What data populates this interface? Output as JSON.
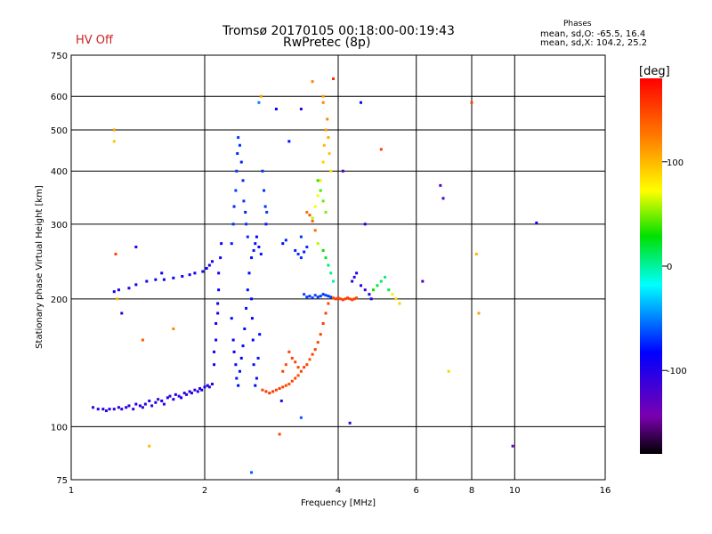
{
  "header": {
    "title_line1": "Tromsø 20170105 00:18:00-00:19:43",
    "title_line2": "RwPretec (8p)",
    "status": "HV Off",
    "stats_title": "Phases",
    "stats_line1": "mean, sd,O: -65.5, 16.4",
    "stats_line2": "mean, sd,X: 104.2, 25.2"
  },
  "colors": {
    "status": "#cc2222",
    "grid": "#000000"
  },
  "chart_data": {
    "type": "scatter",
    "xlabel": "Frequency [MHz]",
    "ylabel": "Stationary phase Virtual Height [km]",
    "xscale": "log",
    "yscale": "log",
    "xlim": [
      1,
      16
    ],
    "ylim": [
      75,
      750
    ],
    "xticks": [
      1,
      2,
      4,
      6,
      8,
      10,
      16
    ],
    "yticks": [
      75,
      100,
      200,
      300,
      400,
      500,
      600,
      750
    ],
    "grid": true,
    "colorbar": {
      "label": "[deg]",
      "range": [
        -180,
        180
      ],
      "ticks": [
        100,
        0,
        -100
      ],
      "colormap": "rainbow (black→purple→blue→cyan→green→yellow→orange→red)"
    },
    "points_format": "[frequency_MHz, height_km, phase_deg]",
    "points": [
      [
        1.12,
        111,
        -110
      ],
      [
        1.15,
        110,
        -105
      ],
      [
        1.18,
        110,
        -100
      ],
      [
        1.2,
        109,
        -112
      ],
      [
        1.22,
        110,
        -95
      ],
      [
        1.25,
        110,
        -108
      ],
      [
        1.28,
        111,
        -100
      ],
      [
        1.3,
        110,
        -115
      ],
      [
        1.33,
        111,
        -98
      ],
      [
        1.35,
        112,
        -105
      ],
      [
        1.38,
        110,
        -110
      ],
      [
        1.4,
        113,
        -100
      ],
      [
        1.43,
        112,
        -90
      ],
      [
        1.45,
        111,
        -115
      ],
      [
        1.47,
        113,
        -102
      ],
      [
        1.5,
        115,
        -95
      ],
      [
        1.52,
        112,
        -108
      ],
      [
        1.55,
        114,
        -100
      ],
      [
        1.57,
        116,
        -112
      ],
      [
        1.6,
        115,
        -92
      ],
      [
        1.62,
        113,
        -105
      ],
      [
        1.65,
        117,
        -98
      ],
      [
        1.67,
        118,
        -115
      ],
      [
        1.7,
        116,
        -100
      ],
      [
        1.72,
        119,
        -95
      ],
      [
        1.75,
        118,
        -110
      ],
      [
        1.77,
        117,
        -90
      ],
      [
        1.8,
        120,
        -102
      ],
      [
        1.82,
        119,
        -108
      ],
      [
        1.85,
        121,
        -95
      ],
      [
        1.87,
        120,
        -100
      ],
      [
        1.9,
        122,
        -112
      ],
      [
        1.93,
        121,
        -95
      ],
      [
        1.95,
        123,
        -105
      ],
      [
        1.97,
        122,
        -92
      ],
      [
        2.0,
        124,
        -100
      ],
      [
        2.03,
        125,
        -90
      ],
      [
        2.05,
        124,
        -108
      ],
      [
        2.08,
        126,
        -95
      ],
      [
        2.1,
        140,
        -95
      ],
      [
        2.1,
        150,
        -90
      ],
      [
        2.12,
        160,
        -95
      ],
      [
        2.12,
        175,
        -92
      ],
      [
        2.14,
        185,
        -98
      ],
      [
        2.14,
        195,
        -90
      ],
      [
        2.15,
        210,
        -88
      ],
      [
        2.15,
        230,
        -92
      ],
      [
        2.17,
        250,
        -95
      ],
      [
        2.18,
        270,
        -90
      ],
      [
        2.08,
        245,
        -92
      ],
      [
        2.05,
        240,
        -95
      ],
      [
        2.02,
        236,
        -90
      ],
      [
        1.98,
        232,
        -92
      ],
      [
        1.9,
        230,
        -90
      ],
      [
        1.85,
        228,
        -95
      ],
      [
        1.78,
        226,
        -92
      ],
      [
        1.7,
        224,
        -88
      ],
      [
        1.62,
        222,
        -90
      ],
      [
        1.55,
        222,
        -95
      ],
      [
        1.48,
        220,
        -92
      ],
      [
        1.4,
        216,
        -90
      ],
      [
        1.35,
        212,
        -95
      ],
      [
        1.28,
        210,
        -92
      ],
      [
        1.25,
        208,
        -90
      ],
      [
        2.3,
        270,
        -75
      ],
      [
        2.32,
        300,
        -70
      ],
      [
        2.33,
        330,
        -72
      ],
      [
        2.35,
        360,
        -68
      ],
      [
        2.36,
        400,
        -70
      ],
      [
        2.37,
        440,
        -72
      ],
      [
        2.38,
        480,
        -68
      ],
      [
        2.4,
        460,
        -70
      ],
      [
        2.42,
        420,
        -75
      ],
      [
        2.44,
        380,
        -72
      ],
      [
        2.45,
        340,
        -70
      ],
      [
        2.47,
        320,
        -75
      ],
      [
        2.48,
        300,
        -70
      ],
      [
        2.5,
        280,
        -72
      ],
      [
        2.3,
        180,
        -80
      ],
      [
        2.32,
        160,
        -85
      ],
      [
        2.33,
        150,
        -82
      ],
      [
        2.35,
        140,
        -80
      ],
      [
        2.36,
        130,
        -78
      ],
      [
        2.38,
        125,
        -82
      ],
      [
        2.4,
        135,
        -80
      ],
      [
        2.42,
        145,
        -85
      ],
      [
        2.44,
        155,
        -82
      ],
      [
        2.46,
        170,
        -80
      ],
      [
        2.48,
        190,
        -78
      ],
      [
        2.5,
        210,
        -80
      ],
      [
        2.52,
        230,
        -82
      ],
      [
        2.55,
        250,
        -80
      ],
      [
        2.58,
        260,
        -78
      ],
      [
        2.6,
        270,
        -80
      ],
      [
        2.62,
        280,
        -82
      ],
      [
        2.65,
        265,
        -80
      ],
      [
        2.68,
        255,
        -78
      ],
      [
        2.55,
        200,
        -82
      ],
      [
        2.56,
        180,
        -85
      ],
      [
        2.57,
        160,
        -82
      ],
      [
        2.58,
        140,
        -80
      ],
      [
        2.6,
        125,
        -82
      ],
      [
        2.62,
        130,
        -80
      ],
      [
        2.64,
        145,
        -78
      ],
      [
        2.66,
        165,
        -82
      ],
      [
        2.7,
        400,
        -70
      ],
      [
        2.72,
        360,
        -72
      ],
      [
        2.74,
        330,
        -70
      ],
      [
        2.75,
        300,
        -75
      ],
      [
        2.76,
        320,
        -68
      ],
      [
        2.65,
        580,
        -50
      ],
      [
        2.68,
        600,
        110
      ],
      [
        2.7,
        122,
        150
      ],
      [
        2.75,
        121,
        155
      ],
      [
        2.8,
        120,
        160
      ],
      [
        2.85,
        121,
        158
      ],
      [
        2.9,
        122,
        152
      ],
      [
        2.95,
        123,
        155
      ],
      [
        3.0,
        124,
        150
      ],
      [
        3.05,
        125,
        148
      ],
      [
        3.1,
        126,
        145
      ],
      [
        3.15,
        128,
        150
      ],
      [
        3.2,
        130,
        148
      ],
      [
        3.25,
        132,
        145
      ],
      [
        3.3,
        135,
        150
      ],
      [
        3.35,
        138,
        152
      ],
      [
        3.4,
        140,
        148
      ],
      [
        3.45,
        144,
        145
      ],
      [
        3.5,
        148,
        150
      ],
      [
        3.55,
        152,
        152
      ],
      [
        3.6,
        158,
        148
      ],
      [
        3.65,
        165,
        150
      ],
      [
        3.7,
        175,
        155
      ],
      [
        3.75,
        185,
        152
      ],
      [
        3.8,
        195,
        150
      ],
      [
        3.1,
        150,
        150
      ],
      [
        3.15,
        145,
        152
      ],
      [
        3.2,
        142,
        150
      ],
      [
        3.25,
        138,
        148
      ],
      [
        3.0,
        135,
        150
      ],
      [
        3.05,
        140,
        148
      ],
      [
        3.2,
        260,
        -75
      ],
      [
        3.25,
        255,
        -70
      ],
      [
        3.3,
        250,
        -72
      ],
      [
        3.35,
        258,
        -75
      ],
      [
        3.3,
        280,
        -70
      ],
      [
        3.4,
        265,
        -72
      ],
      [
        3.0,
        270,
        -78
      ],
      [
        3.05,
        275,
        -75
      ],
      [
        3.35,
        205,
        -65
      ],
      [
        3.4,
        202,
        -70
      ],
      [
        3.45,
        203,
        -68
      ],
      [
        3.5,
        201,
        -72
      ],
      [
        3.55,
        204,
        -65
      ],
      [
        3.6,
        202,
        -70
      ],
      [
        3.65,
        203,
        -68
      ],
      [
        3.7,
        205,
        -72
      ],
      [
        3.75,
        204,
        -65
      ],
      [
        3.8,
        203,
        -70
      ],
      [
        3.85,
        202,
        -68
      ],
      [
        3.5,
        310,
        60
      ],
      [
        3.55,
        330,
        70
      ],
      [
        3.6,
        350,
        75
      ],
      [
        3.65,
        380,
        80
      ],
      [
        3.7,
        420,
        90
      ],
      [
        3.72,
        460,
        100
      ],
      [
        3.75,
        500,
        110
      ],
      [
        3.78,
        530,
        120
      ],
      [
        3.8,
        480,
        105
      ],
      [
        3.82,
        440,
        95
      ],
      [
        3.85,
        400,
        85
      ],
      [
        3.7,
        600,
        110
      ],
      [
        3.6,
        380,
        35
      ],
      [
        3.65,
        360,
        40
      ],
      [
        3.7,
        340,
        45
      ],
      [
        3.75,
        320,
        50
      ],
      [
        3.4,
        320,
        130
      ],
      [
        3.45,
        315,
        140
      ],
      [
        3.5,
        305,
        135
      ],
      [
        3.55,
        290,
        130
      ],
      [
        3.6,
        270,
        60
      ],
      [
        3.7,
        260,
        30
      ],
      [
        3.75,
        250,
        20
      ],
      [
        3.8,
        240,
        10
      ],
      [
        3.85,
        230,
        5
      ],
      [
        3.9,
        220,
        0
      ],
      [
        3.9,
        201,
        150
      ],
      [
        3.95,
        200,
        155
      ],
      [
        4.0,
        201,
        150
      ],
      [
        4.05,
        200,
        148
      ],
      [
        4.1,
        199,
        152
      ],
      [
        4.15,
        200,
        150
      ],
      [
        4.2,
        201,
        155
      ],
      [
        4.25,
        200,
        148
      ],
      [
        4.3,
        199,
        150
      ],
      [
        4.35,
        200,
        152
      ],
      [
        4.4,
        201,
        150
      ],
      [
        4.3,
        220,
        -110
      ],
      [
        4.35,
        225,
        -105
      ],
      [
        4.4,
        230,
        -100
      ],
      [
        4.5,
        215,
        -105
      ],
      [
        4.6,
        210,
        -110
      ],
      [
        4.7,
        205,
        -95
      ],
      [
        4.75,
        200,
        -100
      ],
      [
        4.8,
        210,
        30
      ],
      [
        4.9,
        215,
        20
      ],
      [
        5.0,
        220,
        10
      ],
      [
        5.1,
        225,
        5
      ],
      [
        5.2,
        210,
        15
      ],
      [
        5.3,
        205,
        80
      ],
      [
        5.4,
        200,
        85
      ],
      [
        5.5,
        195,
        90
      ],
      [
        4.1,
        400,
        -120
      ],
      [
        4.5,
        580,
        -80
      ],
      [
        4.6,
        300,
        -100
      ],
      [
        5.0,
        450,
        150
      ],
      [
        6.2,
        220,
        -120
      ],
      [
        6.8,
        370,
        -130
      ],
      [
        6.9,
        345,
        -115
      ],
      [
        8.0,
        580,
        150
      ],
      [
        8.2,
        255,
        100
      ],
      [
        8.3,
        185,
        110
      ],
      [
        9.9,
        90,
        -140
      ],
      [
        11.2,
        302,
        -90
      ],
      [
        1.25,
        500,
        110
      ],
      [
        1.25,
        470,
        95
      ],
      [
        1.26,
        255,
        150
      ],
      [
        1.27,
        200,
        100
      ],
      [
        1.3,
        185,
        -100
      ],
      [
        1.4,
        265,
        -100
      ],
      [
        1.45,
        160,
        140
      ],
      [
        1.6,
        230,
        -90
      ],
      [
        1.7,
        170,
        120
      ],
      [
        1.5,
        90,
        100
      ],
      [
        2.9,
        560,
        -90
      ],
      [
        2.95,
        96,
        150
      ],
      [
        2.98,
        115,
        -110
      ],
      [
        3.3,
        105,
        -60
      ],
      [
        4.25,
        102,
        -110
      ],
      [
        7.1,
        135,
        90
      ],
      [
        2.55,
        78,
        -60
      ],
      [
        3.1,
        470,
        -80
      ],
      [
        3.3,
        560,
        -100
      ],
      [
        3.5,
        650,
        120
      ],
      [
        3.9,
        660,
        160
      ],
      [
        3.7,
        580,
        120
      ]
    ]
  }
}
